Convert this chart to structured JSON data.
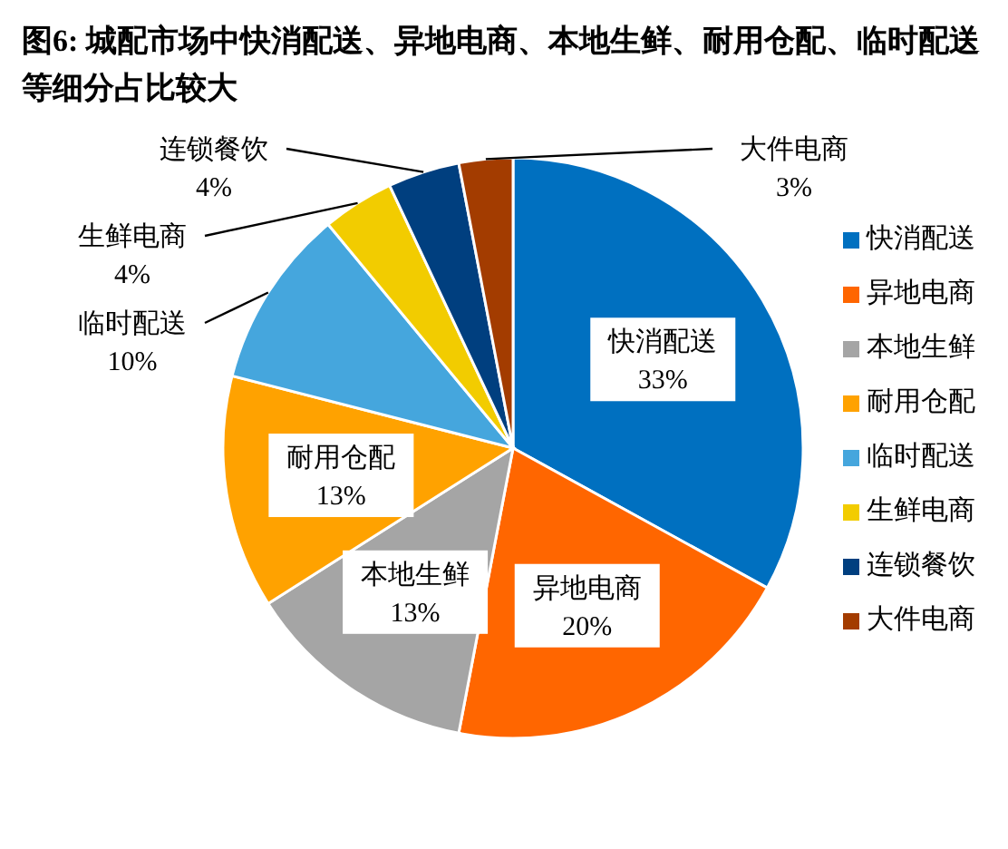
{
  "chart_data": {
    "type": "pie",
    "title": "图6:  城配市场中快消配送、异地电商、本地生鲜、耐用仓配、临时配送等细分占比较大",
    "categories": [
      "快消配送",
      "异地电商",
      "本地生鲜",
      "耐用仓配",
      "临时配送",
      "生鲜电商",
      "连锁餐饮",
      "大件电商"
    ],
    "values": [
      33,
      20,
      13,
      13,
      10,
      4,
      4,
      3
    ],
    "value_labels": [
      "33%",
      "20%",
      "13%",
      "13%",
      "10%",
      "4%",
      "4%",
      "3%"
    ],
    "colors": [
      "#0070c0",
      "#ff6600",
      "#a5a5a5",
      "#ffa200",
      "#45a6dd",
      "#f2cc00",
      "#003f7f",
      "#a33c00"
    ],
    "legend": "right"
  }
}
